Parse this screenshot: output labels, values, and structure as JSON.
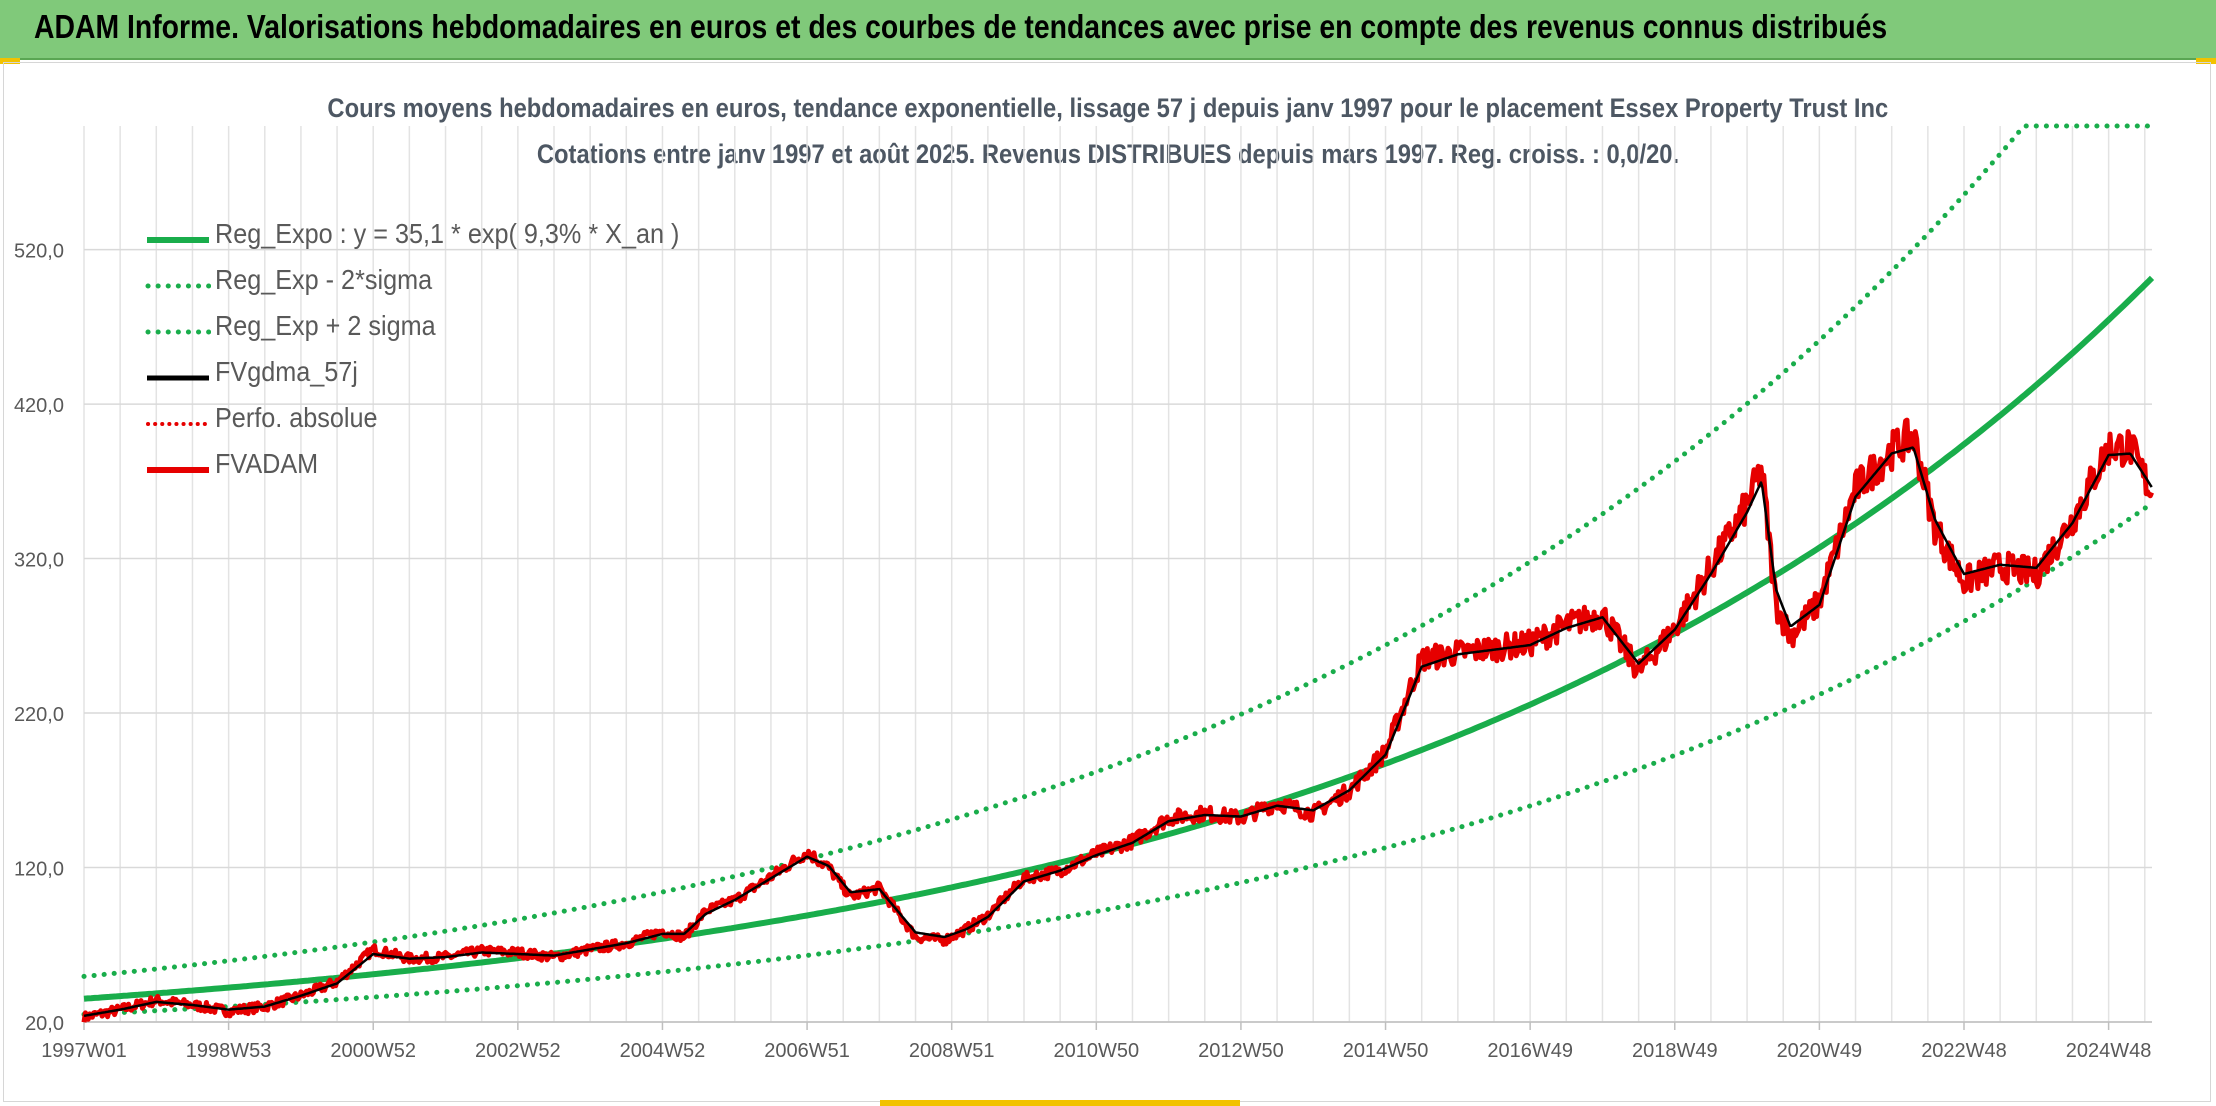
{
  "header": {
    "title": "ADAM Informe. Valorisations hebdomadaires en euros et des courbes de tendances avec prise en compte des revenus connus distribués"
  },
  "chart_data": {
    "type": "line",
    "title": "Cours moyens hebdomadaires en euros, tendance exponentielle, lissage 57 j depuis janv 1997 pour le placement Essex Property Trust Inc",
    "subtitle": "Cotations entre janv 1997 et août 2025. Revenus DISTRIBUES depuis mars 1997. Reg. croiss. : 0,0/20.",
    "xlabel": "",
    "ylabel": "",
    "x_range": [
      1997.0,
      2025.6
    ],
    "ylim": [
      20,
      600
    ],
    "y_ticks": [
      "20,0",
      "120,0",
      "220,0",
      "320,0",
      "420,0",
      "520,0"
    ],
    "x_ticks": [
      {
        "label": "1997W01",
        "x": 1997.0
      },
      {
        "label": "1998W53",
        "x": 1999.0
      },
      {
        "label": "2000W52",
        "x": 2001.0
      },
      {
        "label": "2002W52",
        "x": 2003.0
      },
      {
        "label": "2004W52",
        "x": 2005.0
      },
      {
        "label": "2006W51",
        "x": 2007.0
      },
      {
        "label": "2008W51",
        "x": 2009.0
      },
      {
        "label": "2010W50",
        "x": 2011.0
      },
      {
        "label": "2012W50",
        "x": 2013.0
      },
      {
        "label": "2014W50",
        "x": 2015.0
      },
      {
        "label": "2016W49",
        "x": 2017.0
      },
      {
        "label": "2018W49",
        "x": 2019.0
      },
      {
        "label": "2020W49",
        "x": 2021.0
      },
      {
        "label": "2022W48",
        "x": 2023.0
      },
      {
        "label": "2024W48",
        "x": 2025.0
      }
    ],
    "grid": true,
    "legend_position": "top-left",
    "regression": {
      "a": 35.1,
      "rate": 0.093,
      "sigma_factor": 1.41,
      "ceiling": 600
    },
    "series": [
      {
        "name": "Reg_Expo : y = 35,1 * exp( 9,3% *  X_an )",
        "color": "#19ad4b",
        "style": "solid",
        "width": 6
      },
      {
        "name": "Reg_Exp - 2*sigma",
        "color": "#19ad4b",
        "style": "dotted",
        "width": 5
      },
      {
        "name": "Reg_Exp + 2 sigma",
        "color": "#19ad4b",
        "style": "dotted",
        "width": 5
      },
      {
        "name": "FVgdma_57j",
        "color": "#000000",
        "style": "solid",
        "width": 4
      },
      {
        "name": "Perfo. absolue",
        "color": "#e60000",
        "style": "dotted",
        "width": 3
      },
      {
        "name": "FVADAM",
        "color": "#e60000",
        "style": "solid",
        "width": 5
      }
    ],
    "fvadam": {
      "x": [
        1997.0,
        1997.5,
        1998.0,
        1998.5,
        1999.0,
        1999.5,
        2000.0,
        2000.5,
        2001.0,
        2001.5,
        2002.0,
        2002.5,
        2003.0,
        2003.5,
        2004.0,
        2004.5,
        2005.0,
        2005.3,
        2005.6,
        2006.0,
        2006.5,
        2007.0,
        2007.3,
        2007.6,
        2008.0,
        2008.5,
        2008.9,
        2009.2,
        2009.5,
        2010.0,
        2010.5,
        2011.0,
        2011.5,
        2012.0,
        2012.5,
        2013.0,
        2013.5,
        2014.0,
        2014.5,
        2015.0,
        2015.5,
        2016.0,
        2016.5,
        2017.0,
        2017.5,
        2018.0,
        2018.5,
        2019.0,
        2019.5,
        2020.0,
        2020.2,
        2020.4,
        2020.6,
        2021.0,
        2021.5,
        2022.0,
        2022.3,
        2022.6,
        2023.0,
        2023.5,
        2024.0,
        2024.5,
        2025.0,
        2025.3,
        2025.6
      ],
      "y": [
        23,
        28,
        34,
        31,
        27,
        30,
        37,
        46,
        67,
        61,
        62,
        66,
        65,
        62,
        67,
        71,
        79,
        75,
        92,
        99,
        114,
        130,
        120,
        101,
        107,
        75,
        73,
        80,
        89,
        113,
        118,
        129,
        137,
        152,
        155,
        152,
        162,
        155,
        170,
        195,
        255,
        259,
        262,
        265,
        277,
        284,
        247,
        275,
        314,
        355,
        378,
        290,
        270,
        292,
        365,
        390,
        400,
        340,
        305,
        315,
        310,
        345,
        392,
        392,
        362
      ],
      "noise": 3.2
    },
    "fvgdma_57j": {
      "x": [
        1997.0,
        1997.5,
        1998.0,
        1998.5,
        1999.0,
        1999.5,
        2000.0,
        2000.5,
        2001.0,
        2001.5,
        2002.0,
        2002.5,
        2003.0,
        2003.5,
        2004.0,
        2004.5,
        2005.0,
        2005.3,
        2005.6,
        2006.0,
        2006.5,
        2007.0,
        2007.3,
        2007.6,
        2008.0,
        2008.5,
        2008.9,
        2009.2,
        2009.5,
        2010.0,
        2010.5,
        2011.0,
        2011.5,
        2012.0,
        2012.5,
        2013.0,
        2013.5,
        2014.0,
        2014.5,
        2015.0,
        2015.5,
        2016.0,
        2016.5,
        2017.0,
        2017.5,
        2018.0,
        2018.5,
        2019.0,
        2019.5,
        2020.0,
        2020.2,
        2020.4,
        2020.6,
        2021.0,
        2021.5,
        2022.0,
        2022.3,
        2022.6,
        2023.0,
        2023.5,
        2024.0,
        2024.5,
        2025.0,
        2025.3,
        2025.6
      ],
      "y": [
        24,
        28,
        33,
        31,
        28,
        30,
        37,
        45,
        64,
        61,
        62,
        65,
        64,
        63,
        67,
        71,
        77,
        77,
        90,
        99,
        113,
        127,
        121,
        104,
        106,
        78,
        75,
        80,
        88,
        111,
        118,
        128,
        136,
        150,
        154,
        153,
        160,
        157,
        170,
        193,
        250,
        258,
        261,
        264,
        275,
        282,
        252,
        274,
        310,
        350,
        370,
        300,
        276,
        290,
        360,
        388,
        392,
        345,
        310,
        316,
        314,
        343,
        387,
        388,
        366
      ],
      "noise": 0
    }
  }
}
